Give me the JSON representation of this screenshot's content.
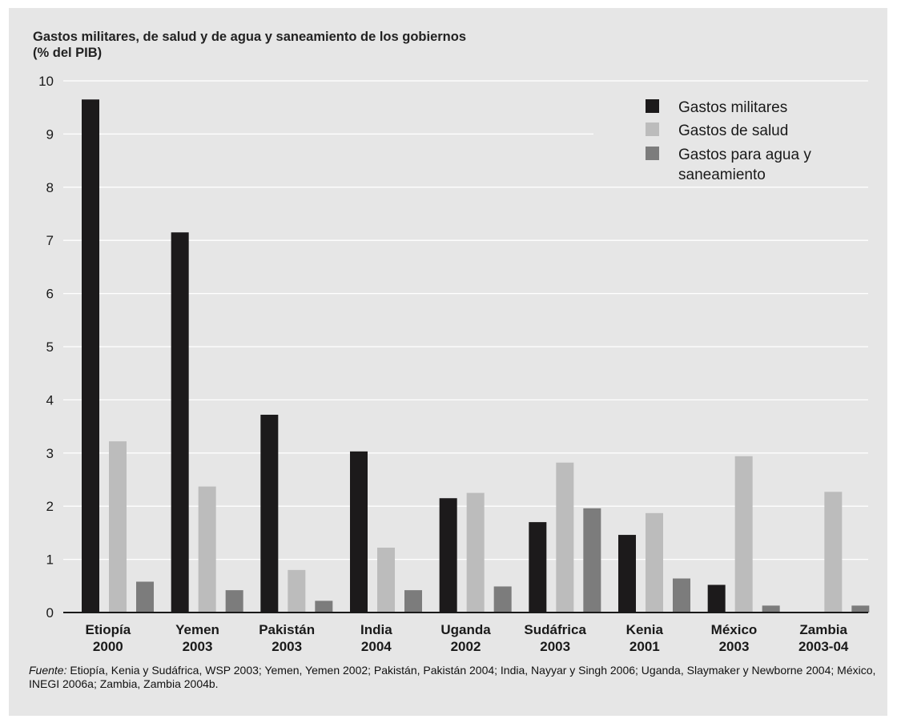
{
  "chart_data": {
    "type": "bar",
    "title_line1": "Gastos militares, de salud y de agua y saneamiento de los gobiernos",
    "title_line2": "(% del PIB)",
    "categories": [
      {
        "line1": "Etiopía",
        "line2": "2000"
      },
      {
        "line1": "Yemen",
        "line2": "2003"
      },
      {
        "line1": "Pakistán",
        "line2": "2003"
      },
      {
        "line1": "India",
        "line2": "2004"
      },
      {
        "line1": "Uganda",
        "line2": "2002"
      },
      {
        "line1": "Sudáfrica",
        "line2": "2003"
      },
      {
        "line1": "Kenia",
        "line2": "2001"
      },
      {
        "line1": "México",
        "line2": "2003"
      },
      {
        "line1": "Zambia",
        "line2": "2003-04"
      }
    ],
    "series": [
      {
        "name": "Gastos militares",
        "color": "#1c1a1b",
        "values": [
          9.65,
          7.15,
          3.72,
          3.03,
          2.15,
          1.7,
          1.46,
          0.52,
          0.0
        ]
      },
      {
        "name": "Gastos de salud",
        "color": "#bcbcbc",
        "values": [
          3.22,
          2.37,
          0.8,
          1.22,
          2.25,
          2.82,
          1.87,
          2.94,
          2.27
        ]
      },
      {
        "name": "Gastos para agua y saneamiento",
        "color": "#7c7c7c",
        "values": [
          0.58,
          0.42,
          0.22,
          0.42,
          0.49,
          1.96,
          0.64,
          0.13,
          0.13
        ]
      }
    ],
    "legend": {
      "position": "top-right",
      "entries": [
        {
          "line1": "Gastos militares",
          "line2": ""
        },
        {
          "line1": "Gastos de salud",
          "line2": ""
        },
        {
          "line1": "Gastos para agua y",
          "line2": "saneamiento"
        }
      ]
    },
    "yticks": [
      0,
      1,
      2,
      3,
      4,
      5,
      6,
      7,
      8,
      9,
      10
    ],
    "ylim": [
      0,
      10
    ],
    "grid": true
  },
  "footnote": {
    "label": "Fuente:",
    "text": " Etiopía, Kenia y Sudáfrica, WSP 2003; Yemen, Yemen 2002; Pakistán, Pakistán 2004; India, Nayyar y Singh 2006; Uganda, Slaymaker y Newborne 2004; México, INEGI 2006a; Zambia, Zambia 2004b."
  }
}
